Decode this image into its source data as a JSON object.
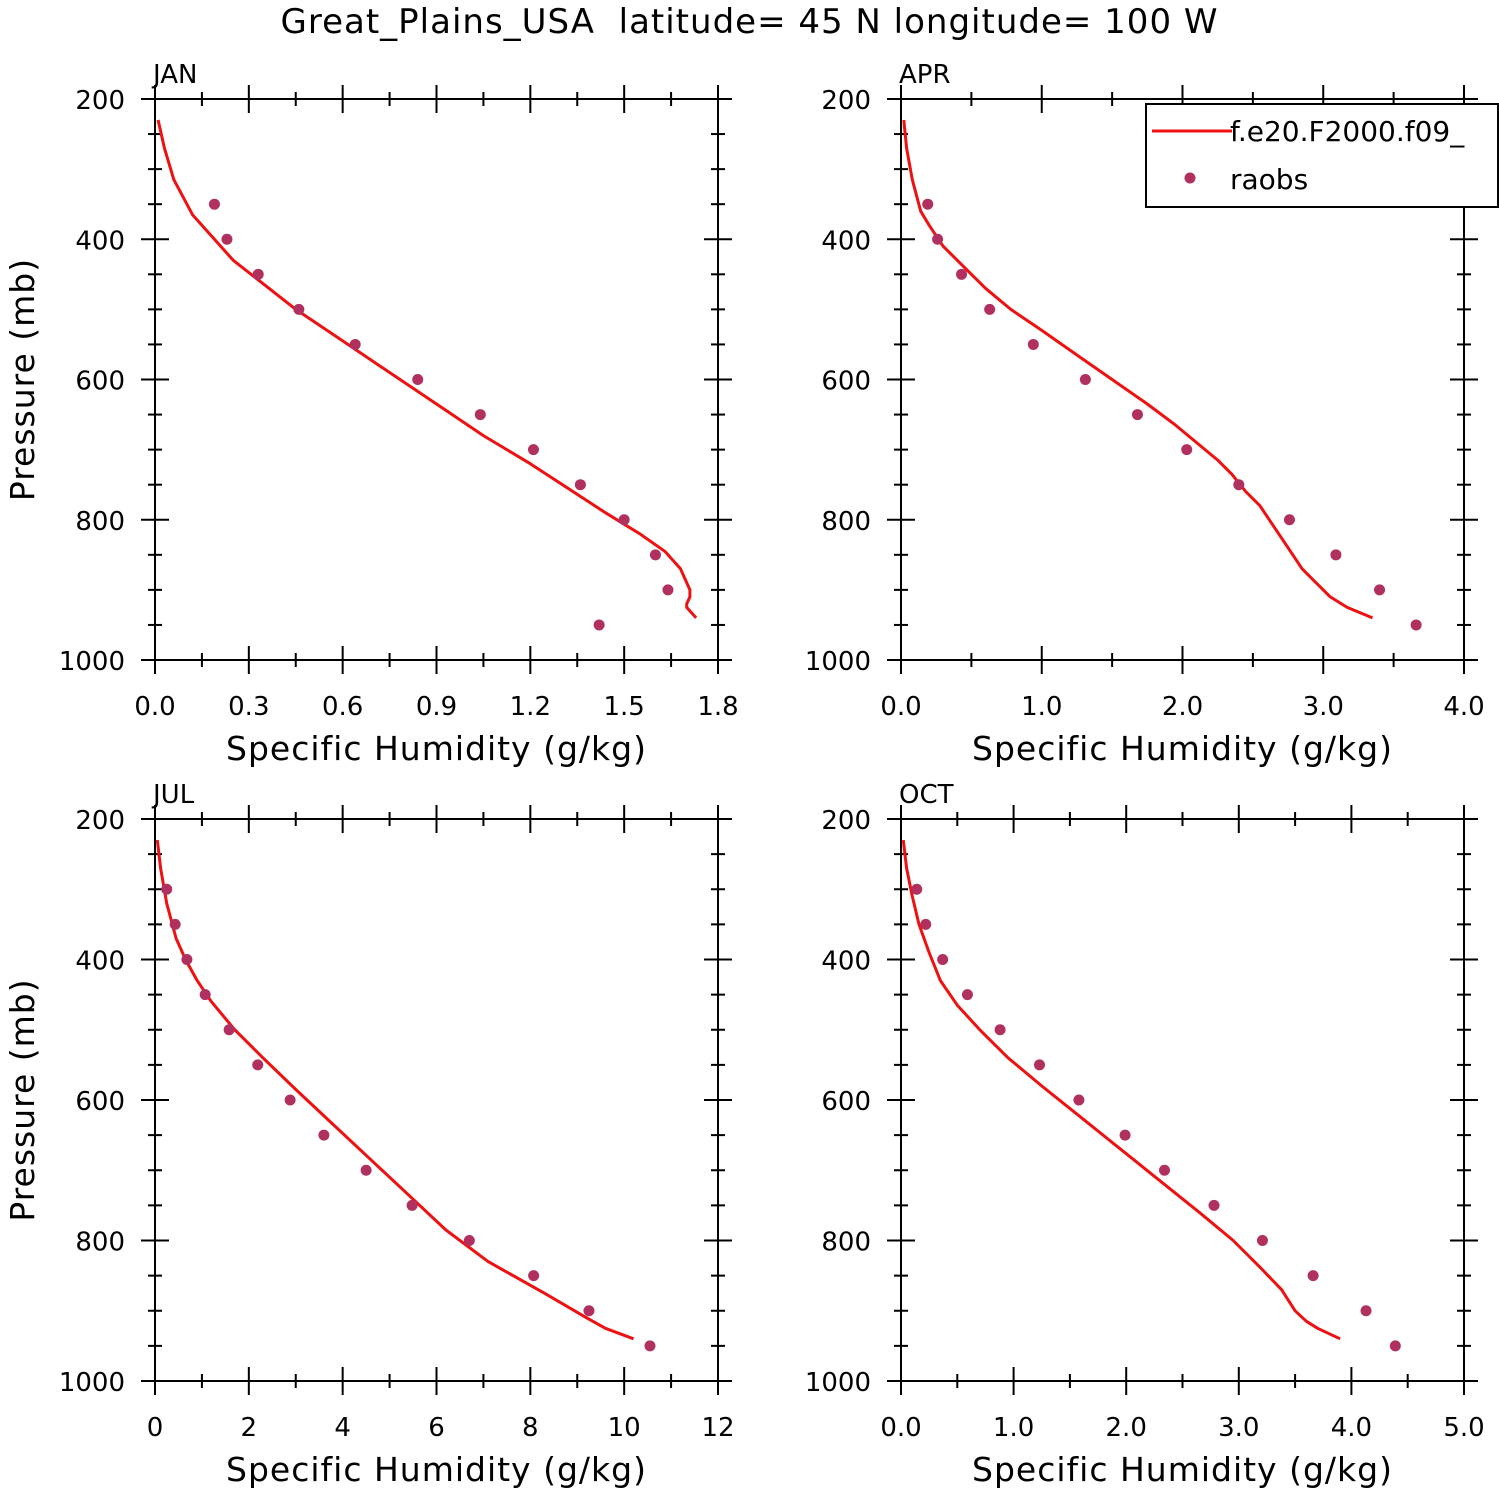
{
  "title": "Great_Plains_USA  latitude= 45 N longitude= 100 W",
  "colors": {
    "model": "#ee1111",
    "obs": "#b03060",
    "axis": "#000000"
  },
  "legend": {
    "placement": "top-right of APR panel",
    "model_label": "f.e20.F2000.f09_",
    "obs_label": "raobs"
  },
  "chart_data": [
    {
      "type": "line",
      "panel": "JAN",
      "title": "JAN",
      "xlabel": "Specific Humidity (g/kg)",
      "ylabel": "Pressure (mb)",
      "xlim": [
        0.0,
        1.8
      ],
      "ylim": [
        1000,
        200
      ],
      "y_reversed": true,
      "xticks": [
        0.0,
        0.3,
        0.6,
        0.9,
        1.2,
        1.5,
        1.8
      ],
      "xticklabels": [
        "0.0",
        "0.3",
        "0.6",
        "0.9",
        "1.2",
        "1.5",
        "1.8"
      ],
      "yticks": [
        200,
        400,
        600,
        800,
        1000
      ],
      "yticklabels": [
        "200",
        "400",
        "600",
        "800",
        "1000"
      ],
      "grid": false,
      "series": [
        {
          "name": "f.e20.F2000.f09_",
          "kind": "line",
          "x": [
            0.01,
            0.03,
            0.06,
            0.12,
            0.18,
            0.25,
            0.35,
            0.45,
            0.6,
            0.75,
            0.9,
            1.05,
            1.2,
            1.32,
            1.44,
            1.55,
            1.63,
            1.68,
            1.71,
            1.71,
            1.7,
            1.7,
            1.73
          ],
          "y": [
            230,
            270,
            315,
            365,
            395,
            430,
            465,
            500,
            545,
            590,
            635,
            680,
            720,
            755,
            790,
            820,
            845,
            870,
            900,
            910,
            920,
            925,
            940
          ]
        },
        {
          "name": "raobs",
          "kind": "scatter",
          "x": [
            0.19,
            0.23,
            0.33,
            0.46,
            0.64,
            0.84,
            1.04,
            1.21,
            1.36,
            1.5,
            1.6,
            1.64,
            1.42
          ],
          "y": [
            350,
            400,
            450,
            500,
            550,
            600,
            650,
            700,
            750,
            800,
            850,
            900,
            950
          ]
        }
      ]
    },
    {
      "type": "line",
      "panel": "APR",
      "title": "APR",
      "xlabel": "Specific Humidity (g/kg)",
      "ylabel": "",
      "xlim": [
        0.0,
        4.0
      ],
      "ylim": [
        1000,
        200
      ],
      "y_reversed": true,
      "xticks": [
        0.0,
        1.0,
        2.0,
        3.0,
        4.0
      ],
      "xticklabels": [
        "0.0",
        "1.0",
        "2.0",
        "3.0",
        "4.0"
      ],
      "yticks": [
        200,
        400,
        600,
        800,
        1000
      ],
      "yticklabels": [
        "200",
        "400",
        "600",
        "800",
        "1000"
      ],
      "grid": false,
      "series": [
        {
          "name": "f.e20.F2000.f09_",
          "kind": "line",
          "x": [
            0.02,
            0.04,
            0.08,
            0.14,
            0.2,
            0.3,
            0.45,
            0.6,
            0.78,
            1.0,
            1.25,
            1.5,
            1.75,
            1.95,
            2.1,
            2.25,
            2.35,
            2.45,
            2.55,
            2.65,
            2.75,
            2.85,
            2.95,
            3.05,
            3.17,
            3.35
          ],
          "y": [
            230,
            270,
            315,
            360,
            380,
            410,
            440,
            470,
            500,
            530,
            565,
            600,
            635,
            665,
            690,
            715,
            735,
            760,
            780,
            810,
            840,
            870,
            890,
            910,
            925,
            940
          ]
        },
        {
          "name": "raobs",
          "kind": "scatter",
          "x": [
            0.19,
            0.26,
            0.43,
            0.63,
            0.94,
            1.31,
            1.68,
            2.03,
            2.4,
            2.76,
            3.09,
            3.4,
            3.66
          ],
          "y": [
            350,
            400,
            450,
            500,
            550,
            600,
            650,
            700,
            750,
            800,
            850,
            900,
            950
          ]
        }
      ]
    },
    {
      "type": "line",
      "panel": "JUL",
      "title": "JUL",
      "xlabel": "Specific Humidity (g/kg)",
      "ylabel": "Pressure (mb)",
      "xlim": [
        0,
        12
      ],
      "ylim": [
        1000,
        200
      ],
      "y_reversed": true,
      "xticks": [
        0,
        2,
        4,
        6,
        8,
        10,
        12
      ],
      "xticklabels": [
        "0",
        "2",
        "4",
        "6",
        "8",
        "10",
        "12"
      ],
      "yticks": [
        200,
        400,
        600,
        800,
        1000
      ],
      "yticklabels": [
        "200",
        "400",
        "600",
        "800",
        "1000"
      ],
      "grid": false,
      "series": [
        {
          "name": "f.e20.F2000.f09_",
          "kind": "line",
          "x": [
            0.05,
            0.12,
            0.25,
            0.45,
            0.65,
            0.9,
            1.2,
            1.7,
            2.3,
            3.0,
            3.8,
            4.6,
            5.4,
            6.2,
            7.1,
            8.3,
            9.2,
            9.6,
            10.2
          ],
          "y": [
            230,
            270,
            320,
            370,
            400,
            430,
            460,
            500,
            540,
            585,
            635,
            685,
            735,
            785,
            830,
            875,
            910,
            925,
            940
          ]
        },
        {
          "name": "raobs",
          "kind": "scatter",
          "x": [
            0.25,
            0.43,
            0.68,
            1.07,
            1.58,
            2.19,
            2.88,
            3.6,
            4.5,
            5.48,
            6.7,
            8.07,
            9.25,
            10.55
          ],
          "y": [
            300,
            350,
            400,
            450,
            500,
            550,
            600,
            650,
            700,
            750,
            800,
            850,
            900,
            950
          ]
        }
      ]
    },
    {
      "type": "line",
      "panel": "OCT",
      "title": "OCT",
      "xlabel": "Specific Humidity (g/kg)",
      "ylabel": "",
      "xlim": [
        0.0,
        5.0
      ],
      "ylim": [
        1000,
        200
      ],
      "y_reversed": true,
      "xticks": [
        0.0,
        1.0,
        2.0,
        3.0,
        4.0,
        5.0
      ],
      "xticklabels": [
        "0.0",
        "1.0",
        "2.0",
        "3.0",
        "4.0",
        "5.0"
      ],
      "yticks": [
        200,
        400,
        600,
        800,
        1000
      ],
      "yticklabels": [
        "200",
        "400",
        "600",
        "800",
        "1000"
      ],
      "grid": false,
      "series": [
        {
          "name": "f.e20.F2000.f09_",
          "kind": "line",
          "x": [
            0.02,
            0.05,
            0.1,
            0.16,
            0.25,
            0.35,
            0.5,
            0.7,
            0.95,
            1.25,
            1.6,
            1.95,
            2.3,
            2.65,
            2.95,
            3.2,
            3.38,
            3.5,
            3.6,
            3.7,
            3.9
          ],
          "y": [
            230,
            270,
            310,
            350,
            390,
            430,
            465,
            500,
            540,
            580,
            625,
            670,
            715,
            760,
            800,
            840,
            870,
            900,
            915,
            925,
            940
          ]
        },
        {
          "name": "raobs",
          "kind": "scatter",
          "x": [
            0.14,
            0.22,
            0.37,
            0.59,
            0.88,
            1.23,
            1.58,
            1.99,
            2.34,
            2.78,
            3.21,
            3.66,
            4.13,
            4.39
          ],
          "y": [
            300,
            350,
            400,
            450,
            500,
            550,
            600,
            650,
            700,
            750,
            800,
            850,
            900,
            950
          ]
        }
      ]
    }
  ]
}
